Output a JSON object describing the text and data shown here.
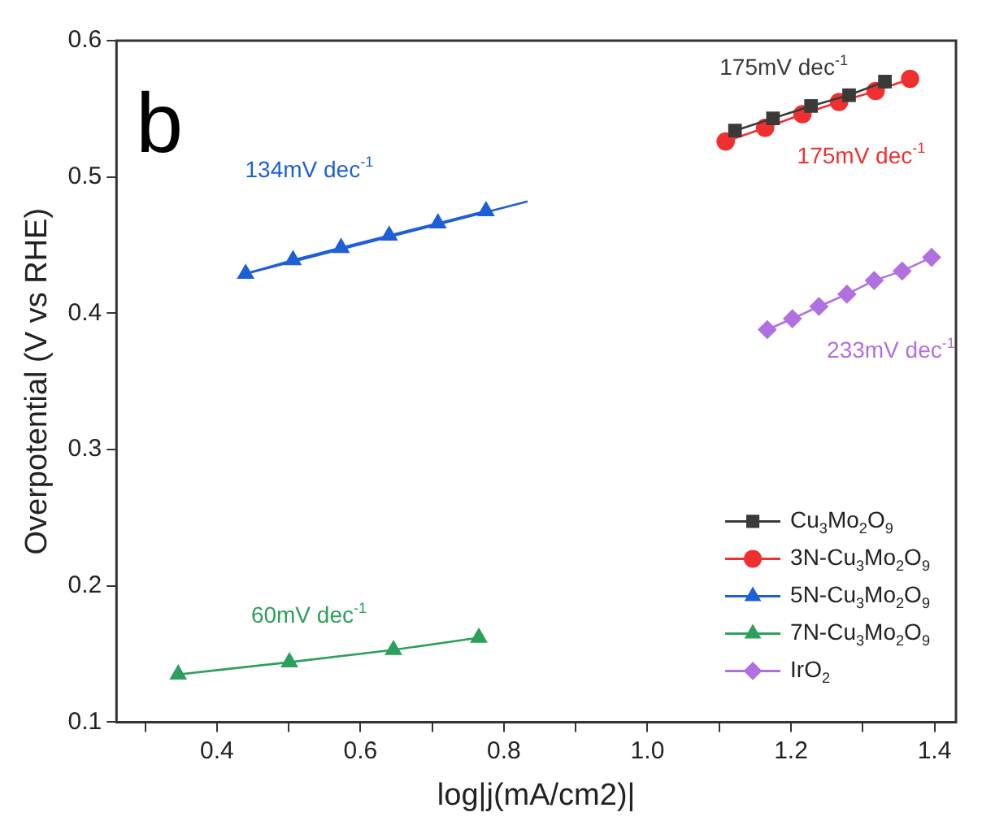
{
  "chart_data": {
    "type": "line",
    "xlabel": "log|j(mA/cm2)|",
    "ylabel": "Overpotential (V vs RHE)",
    "xlim": [
      0.26,
      1.43
    ],
    "ylim": [
      0.1,
      0.6
    ],
    "xticks": [
      {
        "value": 0.3,
        "label": null
      },
      0.4,
      {
        "value": 0.5,
        "label": null
      },
      0.6,
      {
        "value": 0.7,
        "label": null
      },
      0.8,
      {
        "value": 0.9,
        "label": null
      },
      {
        "value": 1.0,
        "label": "1.0"
      },
      {
        "value": 1.1,
        "label": null
      },
      1.2,
      {
        "value": 1.3,
        "label": null
      },
      1.4
    ],
    "yticks": [
      0.1,
      0.2,
      0.3,
      0.4,
      0.5,
      0.6
    ],
    "grid": false,
    "legend": "bottom right",
    "series": [
      {
        "name": "Cu$_{3}$Mo$_{2}$O$_{9}$",
        "color": "#3a3a3a",
        "marker": "square",
        "x": [
          1.122,
          1.175,
          1.228,
          1.281,
          1.331
        ],
        "values": [
          0.534,
          0.543,
          0.552,
          0.56,
          0.57
        ]
      },
      {
        "name": "3N-Cu$_{3}$Mo$_{2}$O$_{9}$",
        "color": "#f03030",
        "marker": "circle",
        "x": [
          1.109,
          1.164,
          1.216,
          1.267,
          1.318,
          1.366
        ],
        "values": [
          0.526,
          0.536,
          0.546,
          0.555,
          0.563,
          0.572
        ]
      },
      {
        "name": "5N-Cu$_{3}$Mo$_{2}$O$_{9}$",
        "color": "#1f5fd6",
        "marker": "triangle",
        "x": [
          0.44,
          0.506,
          0.573,
          0.64,
          0.708,
          0.775
        ],
        "values": [
          0.429,
          0.439,
          0.448,
          0.457,
          0.466,
          0.475
        ]
      },
      {
        "name": "7N-Cu$_{3}$Mo$_{2}$O$_{9}$",
        "color": "#2ca05a",
        "marker": "triangle",
        "x": [
          0.346,
          0.501,
          0.646,
          0.765
        ],
        "values": [
          0.135,
          0.144,
          0.153,
          0.162
        ]
      },
      {
        "name": "IrO$_{2}$",
        "color": "#b070e0",
        "marker": "diamond",
        "x": [
          1.167,
          1.202,
          1.239,
          1.278,
          1.316,
          1.355,
          1.396
        ],
        "values": [
          0.388,
          0.396,
          0.405,
          0.414,
          0.424,
          0.431,
          0.441
        ]
      },
      {
        "type": "line",
        "color": "#1f5fd6",
        "marker": "none",
        "x": [
          0.44,
          0.833
        ],
        "values": [
          0.429,
          0.482
        ]
      }
    ],
    "annotations": [
      "175mV dec$^{-1}$",
      "175mV dec$^{-1}$",
      "134mV dec$^{-1}$",
      "60mV dec$^{-1}$",
      "233mV dec$^{-1}$",
      "b"
    ]
  }
}
